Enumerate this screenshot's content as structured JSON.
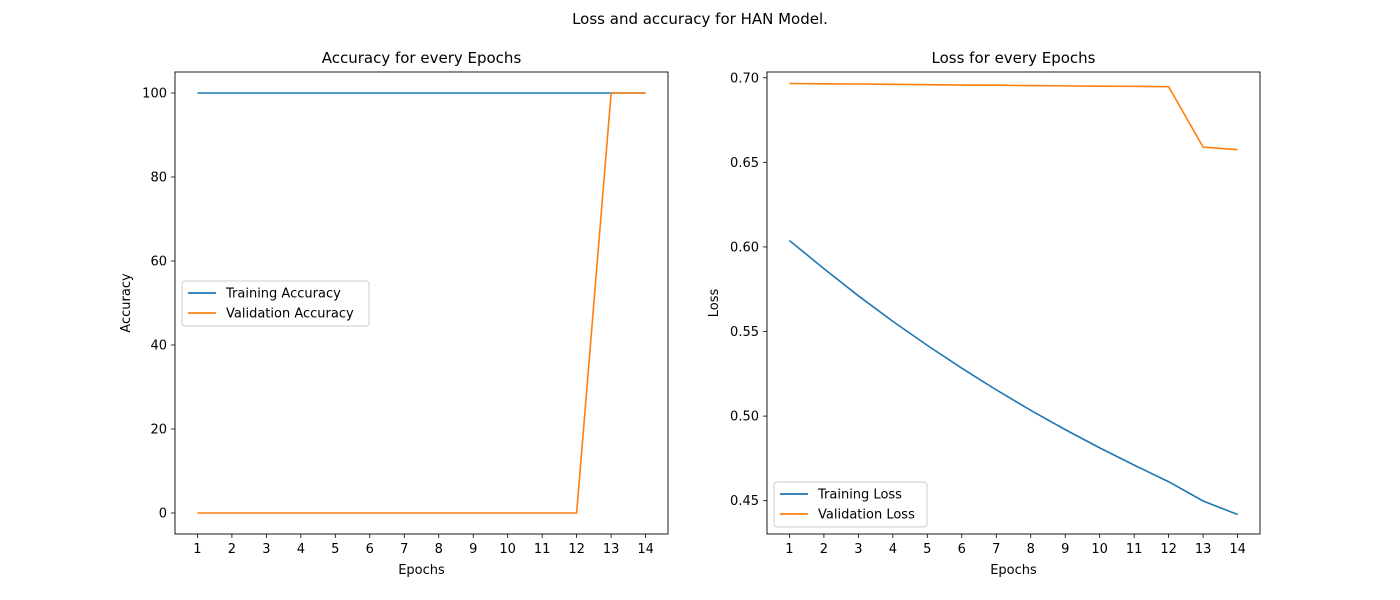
{
  "suptitle": "Loss and accuracy for HAN Model.",
  "chart_data": [
    {
      "type": "line",
      "title": "Accuracy for every Epochs",
      "xlabel": "Epochs",
      "ylabel": "Accuracy",
      "x": [
        1,
        2,
        3,
        4,
        5,
        6,
        7,
        8,
        9,
        10,
        11,
        12,
        13,
        14
      ],
      "xticks": [
        "1",
        "2",
        "3",
        "4",
        "5",
        "6",
        "7",
        "8",
        "9",
        "10",
        "11",
        "12",
        "13",
        "14"
      ],
      "yticks": [
        "0",
        "20",
        "40",
        "60",
        "80",
        "100"
      ],
      "xlim": [
        0.35,
        14.65
      ],
      "ylim": [
        -5,
        105
      ],
      "grid": false,
      "legend": "center-left",
      "series": [
        {
          "name": "Training Accuracy",
          "color": "#1f77b4",
          "values": [
            100,
            100,
            100,
            100,
            100,
            100,
            100,
            100,
            100,
            100,
            100,
            100,
            100,
            100
          ]
        },
        {
          "name": "Validation Accuracy",
          "color": "#ff7f0e",
          "values": [
            0,
            0,
            0,
            0,
            0,
            0,
            0,
            0,
            0,
            0,
            0,
            0,
            100,
            100
          ]
        }
      ]
    },
    {
      "type": "line",
      "title": "Loss for every Epochs",
      "xlabel": "Epochs",
      "ylabel": "Loss",
      "x": [
        1,
        2,
        3,
        4,
        5,
        6,
        7,
        8,
        9,
        10,
        11,
        12,
        13,
        14
      ],
      "xticks": [
        "1",
        "2",
        "3",
        "4",
        "5",
        "6",
        "7",
        "8",
        "9",
        "10",
        "11",
        "12",
        "13",
        "14"
      ],
      "yticks": [
        "0.45",
        "0.50",
        "0.55",
        "0.60",
        "0.65",
        "0.70"
      ],
      "ytick_values": [
        0.45,
        0.5,
        0.55,
        0.6,
        0.65,
        0.7
      ],
      "xlim": [
        0.35,
        14.65
      ],
      "ylim": [
        0.4303,
        0.7034
      ],
      "grid": false,
      "legend": "lower-left",
      "series": [
        {
          "name": "Training Loss",
          "color": "#1f77b4",
          "values": [
            0.6038,
            0.5872,
            0.5711,
            0.556,
            0.5418,
            0.5283,
            0.5155,
            0.5034,
            0.492,
            0.4812,
            0.471,
            0.4612,
            0.4498,
            0.4418
          ]
        },
        {
          "name": "Validation Loss",
          "color": "#ff7f0e",
          "values": [
            0.6966,
            0.6964,
            0.6963,
            0.6961,
            0.6959,
            0.6957,
            0.6956,
            0.6954,
            0.6952,
            0.695,
            0.6949,
            0.6947,
            0.659,
            0.6575
          ]
        }
      ]
    }
  ]
}
